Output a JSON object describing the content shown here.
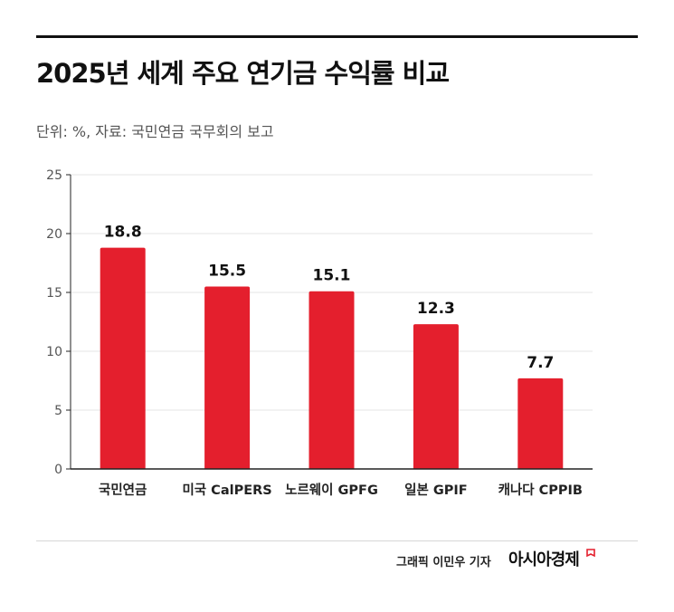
{
  "header": {
    "title": "2025년 세계 주요 연기금 수익률 비교",
    "subtitle": "단위: %, 자료: 국민연금 국무회의 보고"
  },
  "footer": {
    "credit": "그래픽  이민우 기자",
    "brand": "아시아경제",
    "brand_icon": "flag-icon"
  },
  "colors": {
    "bar": "#e41f2d",
    "grid": "#e6e6e6",
    "axis": "#222222",
    "brand_accent": "#e41f2d"
  },
  "chart_data": {
    "type": "bar",
    "title": "2025년 세계 주요 연기금 수익률 비교",
    "xlabel": "",
    "ylabel": "",
    "categories": [
      "국민연금",
      "미국 CalPERS",
      "노르웨이 GPFG",
      "일본 GPIF",
      "캐나다 CPPIB"
    ],
    "values": [
      18.8,
      15.5,
      15.1,
      12.3,
      7.7
    ],
    "value_labels": [
      "18.8",
      "15.5",
      "15.1",
      "12.3",
      "7.7"
    ],
    "yticks": [
      0,
      5,
      10,
      15,
      20,
      25
    ],
    "ytick_labels": [
      "0",
      "5",
      "10",
      "15",
      "20",
      "25"
    ],
    "ylim": [
      0,
      25
    ],
    "grid": true,
    "legend": "none"
  }
}
